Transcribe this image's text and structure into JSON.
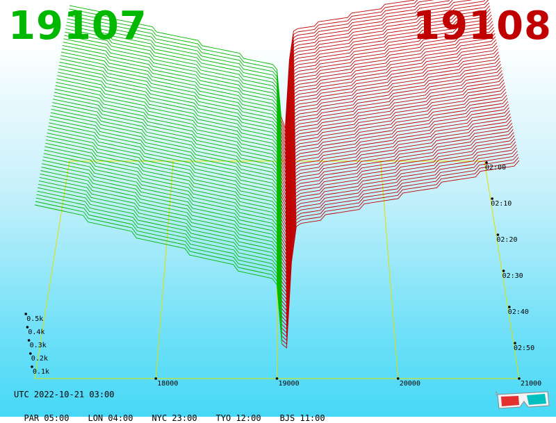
{
  "header": {
    "left_number": "19107",
    "right_number": "19108"
  },
  "colors": {
    "left": "#00b800",
    "right": "#c00000",
    "frame": "#e0e000",
    "base": "#9933cc"
  },
  "footer": {
    "utc": "UTC 2022-10-21 03:00",
    "zones": [
      "PAR 05:00",
      "LON 04:00",
      "NYC 23:00",
      "TYO 12:00",
      "BJS 11:00"
    ]
  },
  "icons": {
    "corner": "3d-glasses-icon"
  },
  "chart_data": {
    "type": "3d-waterfall",
    "x_ticks": [
      "18000",
      "19000",
      "20000",
      "21000"
    ],
    "y_ticks": [
      "0.1k",
      "0.2k",
      "0.3k",
      "0.4k",
      "0.5k"
    ],
    "time_ticks": [
      "02:00",
      "02:10",
      "02:20",
      "02:30",
      "02:40",
      "02:50"
    ],
    "x_range": [
      17000,
      21000
    ],
    "y_range": [
      0,
      1000
    ],
    "left_series": "19107",
    "right_series": "19108",
    "split_at": 19070
  }
}
